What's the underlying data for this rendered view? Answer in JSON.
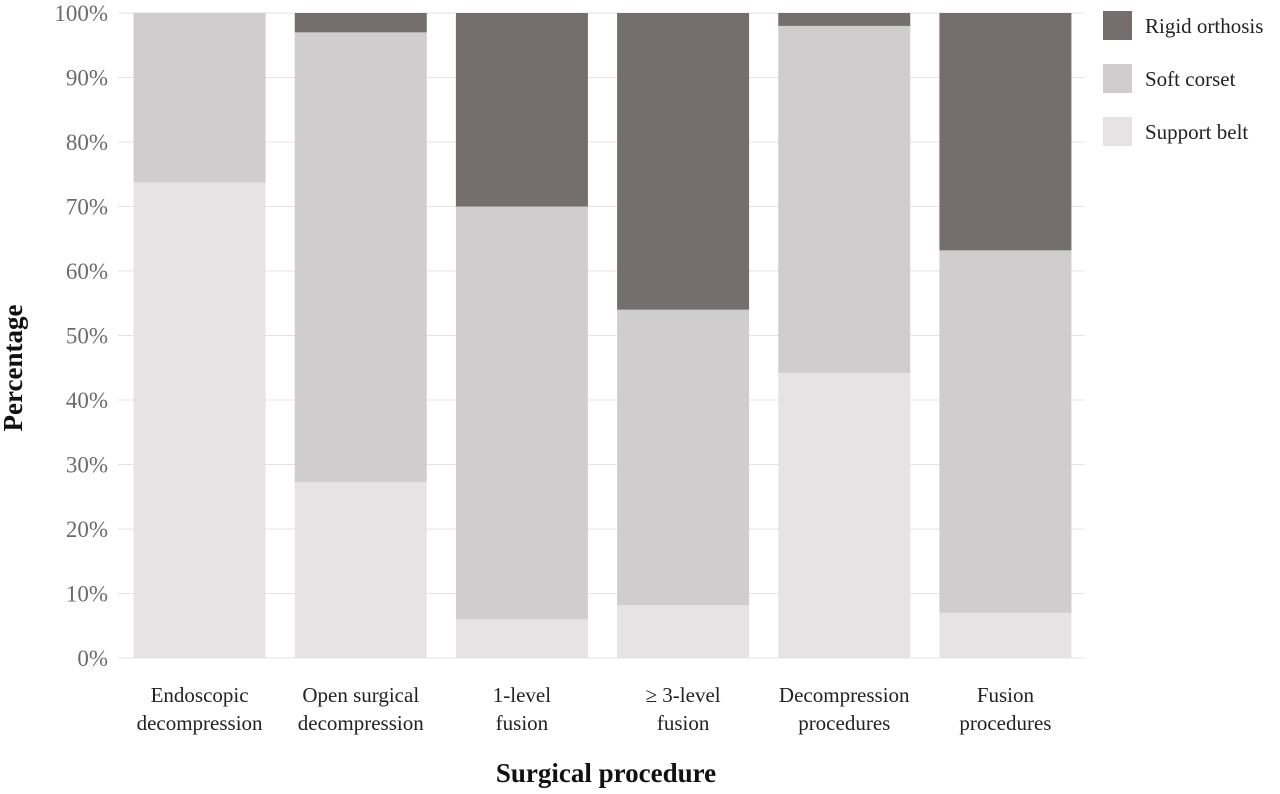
{
  "chart_data": {
    "type": "bar",
    "stacked": true,
    "percent": true,
    "categories": [
      [
        "Endoscopic",
        "decompression"
      ],
      [
        "Open surgical",
        "decompression"
      ],
      [
        "1-level",
        "fusion"
      ],
      [
        "≥ 3-level",
        "fusion"
      ],
      [
        "Decompression",
        "procedures"
      ],
      [
        "Fusion",
        "procedures"
      ]
    ],
    "series": [
      {
        "name": "Support belt",
        "color": "#e5e3e4",
        "values": [
          73.7,
          27.3,
          6.0,
          8.2,
          44.2,
          7.0
        ]
      },
      {
        "name": "Soft corset",
        "color": "#cfcdce",
        "values": [
          26.3,
          69.7,
          64.0,
          45.8,
          53.8,
          56.2
        ]
      },
      {
        "name": "Rigid orthosis",
        "color": "#746e6f",
        "values": [
          0.0,
          3.0,
          30.0,
          46.0,
          2.0,
          36.8
        ]
      }
    ],
    "legend_order": [
      "Rigid orthosis",
      "Soft corset",
      "Support belt"
    ],
    "legend_position": "right",
    "xlabel": "Surgical procedure",
    "ylabel": "Percentage",
    "ylim": [
      0,
      100
    ],
    "yticks": [
      "0%",
      "10%",
      "20%",
      "30%",
      "40%",
      "50%",
      "60%",
      "70%",
      "80%",
      "90%",
      "100%"
    ],
    "grid": true
  }
}
